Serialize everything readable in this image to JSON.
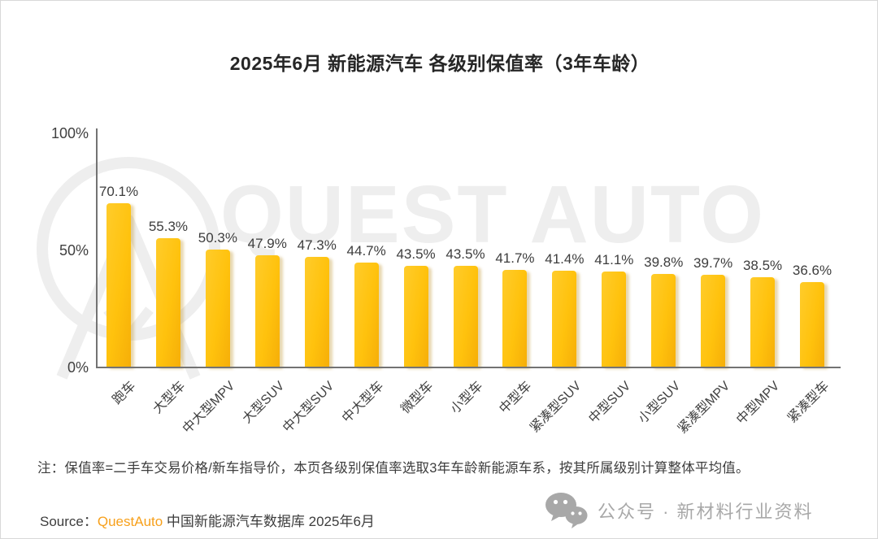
{
  "page": {
    "title": "2025年6月 新能源汽车 各级别保值率（3年车龄）"
  },
  "chart_data": {
    "type": "bar",
    "title": "2025年6月 新能源汽车 各级别保值率（3年车龄）",
    "categories": [
      "跑车",
      "大型车",
      "中大型MPV",
      "大型SUV",
      "中大型SUV",
      "中大型车",
      "微型车",
      "小型车",
      "中型车",
      "紧凑型SUV",
      "中型SUV",
      "小型SUV",
      "紧凑型MPV",
      "中型MPV",
      "紧凑型车"
    ],
    "values": [
      70.1,
      55.3,
      50.3,
      47.9,
      47.3,
      44.7,
      43.5,
      43.5,
      41.7,
      41.4,
      41.1,
      39.8,
      39.7,
      38.5,
      36.6
    ],
    "value_suffix": "%",
    "xlabel": "",
    "ylabel": "",
    "ylim": [
      0,
      100
    ],
    "yticks": [
      {
        "label": "100%",
        "value": 100
      },
      {
        "label": "50%",
        "value": 50
      },
      {
        "label": "0%",
        "value": 0
      }
    ],
    "grid": false,
    "legend": null,
    "bar_color": "#FFC20D",
    "label_color": "#3D3D3D"
  },
  "watermark": {
    "text": "QUEST AUTO",
    "logo": "questauto-ring-logo"
  },
  "note": "注：保值率=二手车交易价格/新车指导价，本页各级别保值率选取3年车龄新能源车系，按其所属级别计算整体平均值。",
  "source": {
    "label": "Source：",
    "brand": "QuestAuto",
    "text": " 中国新能源汽车数据库 2025年6月",
    "brand_color": "#F7A01B"
  },
  "footer_badge": {
    "icon": "wechat-icon",
    "label": "公众号 · 新材料行业资料"
  }
}
